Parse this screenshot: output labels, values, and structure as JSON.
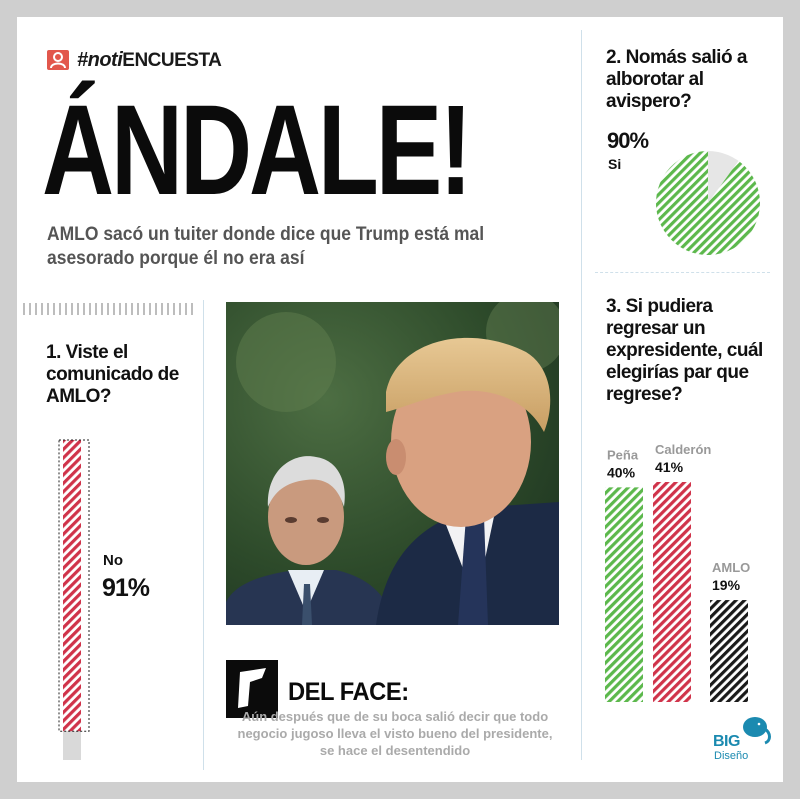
{
  "header": {
    "tag_icon": "user-icon",
    "hashtag_prefix": "#noti",
    "hashtag_suffix": "ENCUESTA",
    "headline": "ÁNDALE!",
    "subheadline": "AMLO sacó un tuiter donde dice que Trump está mal asesorado porque él no era así"
  },
  "colors": {
    "red": "#d0334a",
    "green": "#5cb84c",
    "black": "#1a1a1a",
    "gray": "#d9d9d9",
    "tag": "#e2574c",
    "brand": "#1b8ab0"
  },
  "quote": {
    "icon": "quote-icon",
    "title": "DEL FACE:",
    "body": "Aún después que de su boca salió decir que todo negocio jugoso lleva el visto bueno del presidente, se hace el desentendido"
  },
  "logo": {
    "icon": "elephant-icon",
    "name": "BIG",
    "sub": "Diseño"
  },
  "chart_data": [
    {
      "type": "bar",
      "title": "1. Viste el comunicado de AMLO?",
      "categories": [
        "No"
      ],
      "values": [
        91
      ],
      "value_labels": [
        "91%"
      ],
      "ylim": [
        0,
        100
      ]
    },
    {
      "type": "pie",
      "title": "2. Nomás salió a alborotar al avispero?",
      "categories": [
        "Si"
      ],
      "values": [
        90
      ],
      "value_labels": [
        "90%"
      ]
    },
    {
      "type": "bar",
      "title": "3. Si pudiera regresar un expresidente, cuál elegirías par que regrese?",
      "categories": [
        "Peña",
        "Calderón",
        "AMLO"
      ],
      "values": [
        40,
        41,
        19
      ],
      "value_labels": [
        "40%",
        "41%",
        "19%"
      ],
      "ylim": [
        0,
        41
      ]
    }
  ]
}
